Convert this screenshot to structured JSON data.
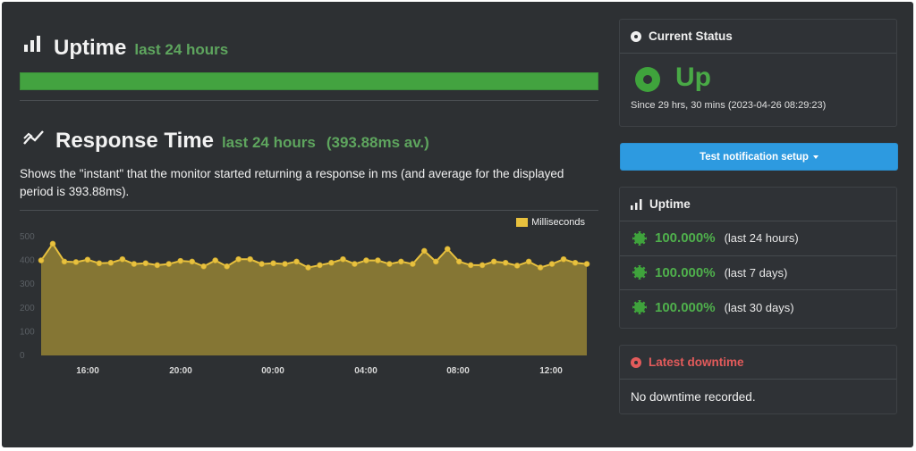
{
  "uptime_section": {
    "title": "Uptime",
    "subtitle": "last 24 hours",
    "bar_value_percent": 100
  },
  "response_section": {
    "title": "Response Time",
    "subtitle": "last 24 hours",
    "average": "(393.88ms av.)",
    "description": "Shows the \"instant\" that the monitor started returning a response in ms (and average for the displayed period is 393.88ms)."
  },
  "colors": {
    "background": "#2d3033",
    "green": "#43a340",
    "line": "#e8c13e",
    "fill": "#8a7a35",
    "button": "#2d9ae0",
    "downtime_red": "#e35b5b"
  },
  "chart_data": {
    "type": "area",
    "legend": [
      "Milliseconds"
    ],
    "legend_position": "top-right",
    "ylim": [
      0,
      500
    ],
    "y_ticks": [
      "500",
      "400",
      "300",
      "200",
      "100",
      "0"
    ],
    "x_tick_labels": [
      "16:00",
      "20:00",
      "00:00",
      "04:00",
      "08:00",
      "12:00"
    ],
    "grid": false,
    "series": [
      {
        "name": "Milliseconds",
        "values": [
          400,
          470,
          395,
          393,
          403,
          388,
          390,
          405,
          385,
          388,
          380,
          385,
          398,
          395,
          375,
          400,
          375,
          405,
          405,
          385,
          388,
          385,
          395,
          370,
          380,
          390,
          405,
          385,
          400,
          400,
          385,
          395,
          385,
          440,
          395,
          448,
          395,
          380,
          380,
          395,
          390,
          378,
          395,
          370,
          385,
          405,
          390,
          385
        ]
      }
    ]
  },
  "current_status": {
    "header": "Current Status",
    "state": "Up",
    "since": "Since 29 hrs, 30 mins (2023-04-26 08:29:23)"
  },
  "notify_button": {
    "label": "Test notification setup"
  },
  "uptime_card": {
    "header": "Uptime",
    "rows": [
      {
        "percent": "100.000%",
        "period": "(last 24 hours)"
      },
      {
        "percent": "100.000%",
        "period": "(last 7 days)"
      },
      {
        "percent": "100.000%",
        "period": "(last 30 days)"
      }
    ]
  },
  "downtime_card": {
    "header": "Latest downtime",
    "message": "No downtime recorded."
  }
}
